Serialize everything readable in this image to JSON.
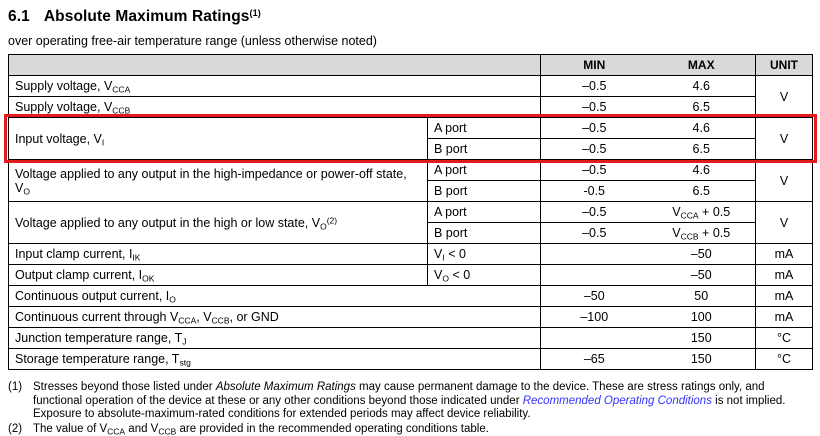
{
  "heading": {
    "number": "6.1",
    "title": "Absolute Maximum Ratings",
    "sup": "(1)"
  },
  "subtitle": "over operating free-air temperature range (unless otherwise noted)",
  "table": {
    "headers": {
      "param": "",
      "min": "MIN",
      "max": "MAX",
      "unit": "UNIT"
    },
    "rows": [
      {
        "param": {
          "text": "Supply voltage, V~CCA~",
          "colspan": 2
        },
        "min": "–0.5",
        "max": "4.6",
        "unit": {
          "text": "V",
          "rowspan": 2
        }
      },
      {
        "param": {
          "text": "Supply voltage, V~CCB~",
          "colspan": 2
        },
        "min": "–0.5",
        "max": "6.5"
      },
      {
        "param": {
          "text": "Input voltage, V~I~",
          "rowspan": 2
        },
        "cond": "A port",
        "min": "–0.5",
        "max": "4.6",
        "unit": {
          "text": "V",
          "rowspan": 2
        },
        "highlight": true
      },
      {
        "cond": "B port",
        "min": "–0.5",
        "max": "6.5",
        "highlight": true
      },
      {
        "param": {
          "text": "Voltage applied to any output in the high-impedance or power-off state, V~O~",
          "rowspan": 2
        },
        "cond": "A port",
        "min": "–0.5",
        "max": "4.6",
        "unit": {
          "text": "V",
          "rowspan": 2
        }
      },
      {
        "cond": "B port",
        "min": "-0.5",
        "max": "6.5"
      },
      {
        "param": {
          "text": "Voltage applied to any output in the high or low state, V~O~^(2)^",
          "rowspan": 2
        },
        "cond": "A port",
        "min": "–0.5",
        "max": "V~CCA~ + 0.5",
        "unit": {
          "text": "V",
          "rowspan": 2
        }
      },
      {
        "cond": "B port",
        "min": "–0.5",
        "max": "V~CCB~ + 0.5"
      },
      {
        "param": {
          "text": "Input clamp current, I~IK~"
        },
        "cond": "V~I~ < 0",
        "min": "",
        "max": "–50",
        "unit": "mA"
      },
      {
        "param": {
          "text": "Output clamp current, I~OK~"
        },
        "cond": "V~O~ < 0",
        "min": "",
        "max": "–50",
        "unit": "mA"
      },
      {
        "param": {
          "text": "Continuous output current, I~O~",
          "colspan": 2
        },
        "min": "–50",
        "max": "50",
        "unit": "mA"
      },
      {
        "param": {
          "text": "Continuous current through V~CCA~, V~CCB~, or GND",
          "colspan": 2
        },
        "min": "–100",
        "max": "100",
        "unit": "mA"
      },
      {
        "param": {
          "text": "Junction temperature range, T~J~",
          "colspan": 2
        },
        "min": "",
        "max": "150",
        "unit": "°C"
      },
      {
        "param": {
          "text": "Storage temperature range, T~stg~",
          "colspan": 2
        },
        "min": "–65",
        "max": "150",
        "unit": "°C"
      }
    ]
  },
  "footnotes": [
    {
      "label": "(1)",
      "segments": [
        {
          "text": "Stresses beyond those listed under "
        },
        {
          "text": "Absolute Maximum Ratings",
          "italic": true
        },
        {
          "text": " may cause permanent damage to the device. These are stress ratings only, and functional operation of the device at these or any other conditions beyond those indicated under "
        },
        {
          "text": "Recommended Operating Conditions",
          "italic": true,
          "link": true
        },
        {
          "text": " is not implied. Exposure to absolute-maximum-rated conditions for extended periods may affect device reliability."
        }
      ]
    },
    {
      "label": "(2)",
      "segments": [
        {
          "text": "The value of V~CCA~ and V~CCB~ are provided in the recommended operating conditions table."
        }
      ]
    }
  ],
  "colors": {
    "header_bg": "#d9d9d9",
    "border": "#000000",
    "link": "#3333ff",
    "highlight": "#e21b1e"
  }
}
